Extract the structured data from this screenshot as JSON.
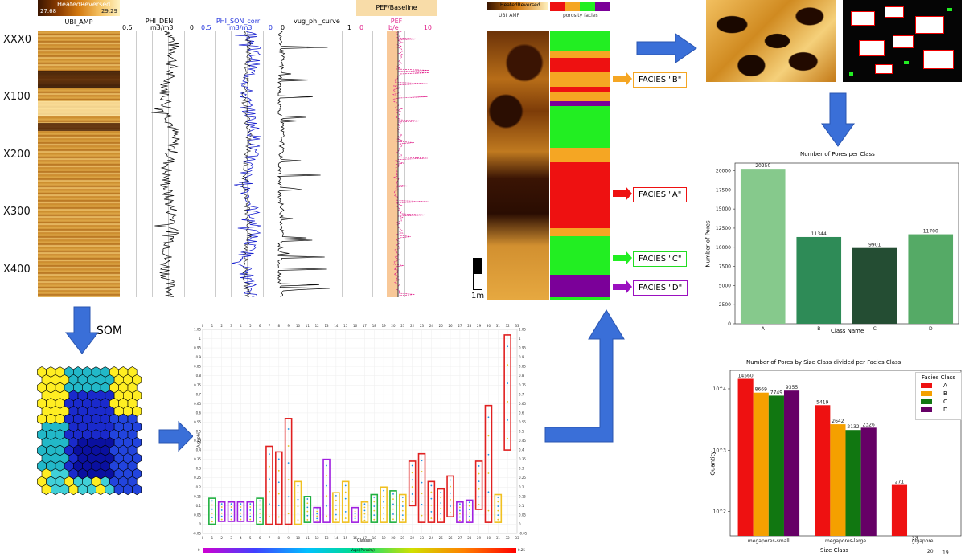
{
  "well_log": {
    "depth_labels": [
      "XXX0",
      "X100",
      "X200",
      "X300",
      "X400"
    ],
    "tracks": [
      {
        "title": "UBI_AMP",
        "sub": "HeatedReversed",
        "min": "27.68",
        "max": "29.29"
      },
      {
        "title": "PHI_DEN",
        "min": "0.5",
        "unit": "m3/m3",
        "max": "0"
      },
      {
        "title": "PHI_SON_corr",
        "min": "0.5",
        "unit": "m3/m3",
        "max": "0"
      },
      {
        "title": "vug_phi_curve",
        "min": "0",
        "max": "1"
      },
      {
        "title": "PEF/Baseline",
        "sub": "PEF",
        "min": "0",
        "unit": "b/e",
        "max": "10"
      }
    ]
  },
  "image_panel": {
    "left_header": "HeatedReversed",
    "left_sub": "UBI_AMP",
    "right_sub": "porosity facies",
    "scale_label": "1m",
    "facies_labels": [
      "FACIES \"B\"",
      "FACIES \"A\"",
      "FACIES \"C\"",
      "FACIES \"D\""
    ],
    "facies_colors": {
      "A": "#ee1111",
      "B": "#f5a623",
      "C": "#22ee22",
      "D": "#7b0099"
    }
  },
  "som": {
    "label": "SOM"
  },
  "cluster_plot": {
    "x_label": "Classes",
    "y_label": "Vug_phi",
    "colorbar_label": "Vugs (Porosity)",
    "colorbar_min": "0",
    "colorbar_max": "0.25",
    "x_ticks": [
      "0",
      "1",
      "2",
      "3",
      "4",
      "5",
      "6",
      "7",
      "8",
      "9",
      "10",
      "11",
      "12",
      "13",
      "14",
      "15",
      "16",
      "17",
      "18",
      "19",
      "20",
      "21",
      "22",
      "23",
      "24",
      "25",
      "26",
      "27",
      "28",
      "29",
      "30",
      "31",
      "32",
      "33"
    ],
    "y_ticks": [
      "-0.05",
      "0",
      "0.05",
      "0.1",
      "0.15",
      "0.2",
      "0.25",
      "0.3",
      "0.35",
      "0.4",
      "0.45",
      "0.5",
      "0.55",
      "0.6",
      "0.65",
      "0.7",
      "0.75",
      "0.8",
      "0.85",
      "0.9",
      "0.95",
      "1",
      "1.05"
    ]
  },
  "chart_data": [
    {
      "type": "bar",
      "title": "Number of Pores per Class",
      "xlabel": "Class Name",
      "ylabel": "Number of Pores",
      "categories": [
        "A",
        "B",
        "C",
        "D"
      ],
      "values": [
        20250,
        11344,
        9901,
        11700
      ],
      "value_labels": [
        "20250",
        "11344",
        "9901",
        "11700"
      ],
      "ylim": [
        0,
        21000
      ],
      "yticks": [
        0,
        2500,
        5000,
        7500,
        10000,
        12500,
        15000,
        17500,
        20000
      ],
      "colors": [
        "#86c98c",
        "#2e8b57",
        "#244d33",
        "#55aa66"
      ]
    },
    {
      "type": "bar",
      "title": "Number of Pores by Size Class divided per Facies Class",
      "xlabel": "Size Class",
      "ylabel": "Quantity",
      "log_scale": true,
      "categories": [
        "megapores-small",
        "megapores-large",
        "gigapore"
      ],
      "legend_title": "Facies Class",
      "legend_position": "top-right",
      "series": [
        {
          "name": "A",
          "color": "#ee1111",
          "values": [
            14560,
            5419,
            271
          ]
        },
        {
          "name": "B",
          "color": "#f5a000",
          "values": [
            8669,
            2642,
            33
          ]
        },
        {
          "name": "C",
          "color": "#117711",
          "values": [
            7749,
            2132,
            20
          ]
        },
        {
          "name": "D",
          "color": "#660066",
          "values": [
            9355,
            2326,
            19
          ]
        }
      ],
      "ytick_labels": [
        "10^2",
        "10^3",
        "10^4"
      ]
    }
  ]
}
